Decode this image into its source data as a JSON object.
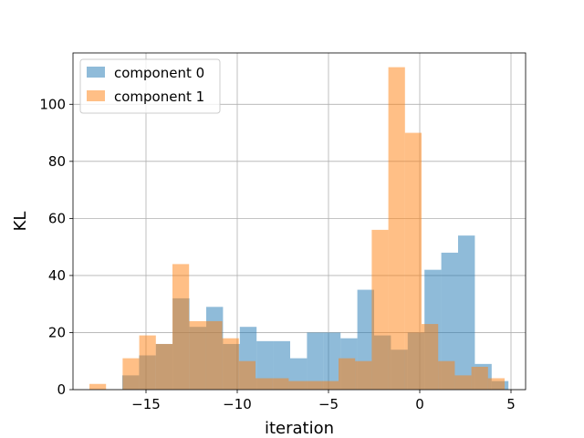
{
  "chart_data": {
    "type": "histogram",
    "xlabel": "iteration",
    "ylabel": "KL",
    "xlim": [
      -19.0,
      5.8
    ],
    "ylim": [
      0,
      118
    ],
    "xticks": [
      -15,
      -10,
      -5,
      0,
      5
    ],
    "yticks": [
      0,
      20,
      40,
      60,
      80,
      100
    ],
    "grid": true,
    "legend_position": "top-left",
    "series": [
      {
        "name": "component 0",
        "color": "#1f77b4",
        "opacity": 0.5,
        "bin_edges": [
          -16.3,
          -15.38,
          -14.46,
          -13.54,
          -12.62,
          -11.7,
          -10.78,
          -9.86,
          -8.94,
          -8.02,
          -7.1,
          -6.18,
          -5.26,
          -4.34,
          -3.42,
          -2.5,
          -1.58,
          -0.66,
          0.26,
          1.18,
          2.1,
          3.02,
          3.94,
          4.86
        ],
        "counts": [
          5,
          12,
          16,
          32,
          22,
          29,
          16,
          22,
          17,
          17,
          11,
          20,
          20,
          18,
          35,
          19,
          14,
          20,
          42,
          48,
          54,
          9,
          3
        ]
      },
      {
        "name": "component 1",
        "color": "#ff7f0e",
        "opacity": 0.5,
        "bin_edges": [
          -18.1,
          -17.19,
          -16.28,
          -15.37,
          -14.46,
          -13.55,
          -12.64,
          -11.73,
          -10.82,
          -9.91,
          -9.0,
          -8.09,
          -7.18,
          -6.27,
          -5.36,
          -4.45,
          -3.54,
          -2.63,
          -1.72,
          -0.81,
          0.1,
          1.01,
          1.92,
          2.83,
          3.74,
          4.65
        ],
        "counts": [
          2,
          0,
          11,
          19,
          16,
          44,
          24,
          24,
          18,
          10,
          4,
          4,
          3,
          3,
          3,
          11,
          10,
          56,
          113,
          90,
          23,
          10,
          5,
          8,
          4
        ]
      }
    ]
  }
}
